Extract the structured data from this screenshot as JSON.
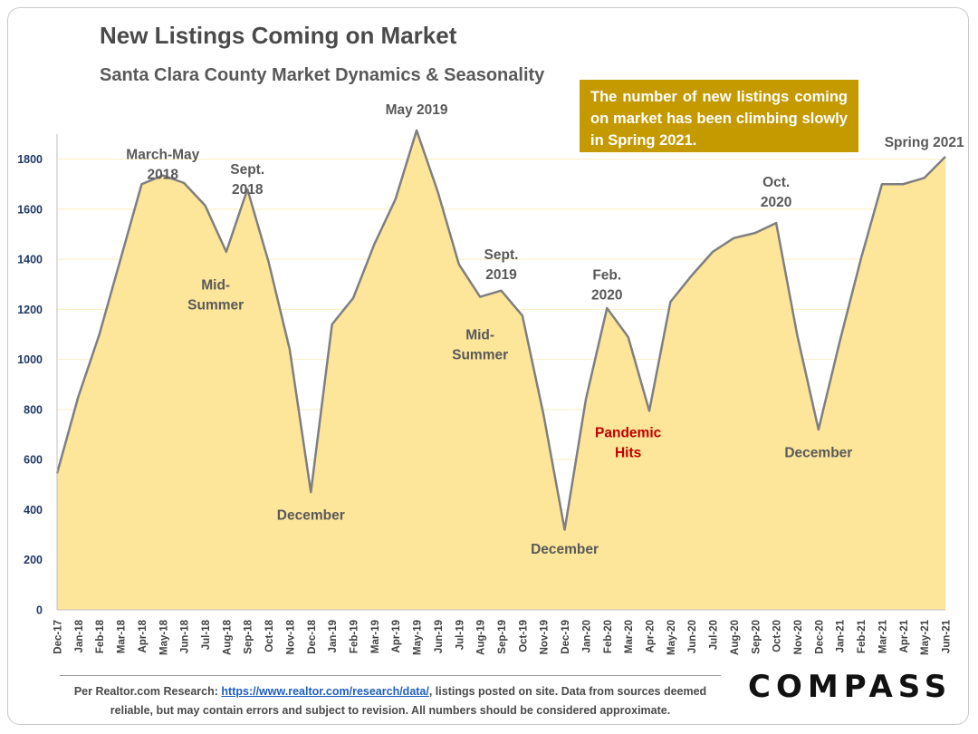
{
  "chart_data": {
    "type": "area",
    "title": "New Listings Coming on Market",
    "subtitle": "Santa Clara County Market Dynamics & Seasonality",
    "ylim": [
      0,
      1900
    ],
    "yticks": [
      0,
      200,
      400,
      600,
      800,
      1000,
      1200,
      1400,
      1600,
      1800
    ],
    "categories": [
      "Dec-17",
      "Jan-18",
      "Feb-18",
      "Mar-18",
      "Apr-18",
      "May-18",
      "Jun-18",
      "Jul-18",
      "Aug-18",
      "Sep-18",
      "Oct-18",
      "Nov-18",
      "Dec-18",
      "Jan-19",
      "Feb-19",
      "Mar-19",
      "Apr-19",
      "May-19",
      "Jun-19",
      "Jul-19",
      "Aug-19",
      "Sep-19",
      "Oct-19",
      "Nov-19",
      "Dec-19",
      "Jan-20",
      "Feb-20",
      "Mar-20",
      "Apr-20",
      "May-20",
      "Jun-20",
      "Jul-20",
      "Aug-20",
      "Sep-20",
      "Oct-20",
      "Nov-20",
      "Dec-20",
      "Jan-21",
      "Feb-21",
      "Mar-21",
      "Apr-21",
      "May-21",
      "Jun-21"
    ],
    "values": [
      545,
      850,
      1100,
      1400,
      1700,
      1735,
      1705,
      1615,
      1430,
      1680,
      1390,
      1040,
      470,
      1140,
      1245,
      1460,
      1640,
      1915,
      1670,
      1380,
      1250,
      1275,
      1175,
      780,
      320,
      840,
      1205,
      1090,
      795,
      1230,
      1335,
      1430,
      1485,
      1505,
      1545,
      1095,
      720,
      1070,
      1400,
      1700,
      1700,
      1725,
      1810
    ],
    "fill_color": "#fde59a",
    "line_color": "#7f7f7f",
    "annotations": [
      {
        "lines": [
          "March-May",
          "2018"
        ],
        "index": 5,
        "value": 1800,
        "color": "#595959"
      },
      {
        "lines": [
          "Sept.",
          "2018"
        ],
        "index": 9,
        "value": 1740,
        "color": "#595959"
      },
      {
        "lines": [
          "Mid-",
          "Summer"
        ],
        "index": 7.5,
        "value": 1280,
        "color": "#595959"
      },
      {
        "lines": [
          "December"
        ],
        "index": 12,
        "value": 360,
        "color": "#595959"
      },
      {
        "lines": [
          "May 2019"
        ],
        "index": 17,
        "value": 1980,
        "color": "#595959"
      },
      {
        "lines": [
          "Sept.",
          "2019"
        ],
        "index": 21,
        "value": 1400,
        "color": "#595959"
      },
      {
        "lines": [
          "Mid-",
          "Summer"
        ],
        "index": 20,
        "value": 1080,
        "color": "#595959"
      },
      {
        "lines": [
          "December"
        ],
        "index": 24,
        "value": 225,
        "color": "#595959"
      },
      {
        "lines": [
          "Feb.",
          "2020"
        ],
        "index": 26,
        "value": 1320,
        "color": "#595959"
      },
      {
        "lines": [
          "Pandemic",
          "Hits"
        ],
        "index": 27,
        "value": 690,
        "color": "#c00000"
      },
      {
        "lines": [
          "December"
        ],
        "index": 36,
        "value": 610,
        "color": "#595959"
      },
      {
        "lines": [
          "Oct.",
          "2020"
        ],
        "index": 34,
        "value": 1690,
        "color": "#595959"
      },
      {
        "lines": [
          "Spring 2021"
        ],
        "index": 41,
        "value": 1850,
        "color": "#595959"
      }
    ]
  },
  "callout": {
    "text": "The number of new listings coming on market has been climbing slowly in Spring 2021."
  },
  "footer": {
    "prefix": "Per Realtor.com Research: ",
    "link": "https://www.realtor.com/research/data/",
    "suffix": ", listings posted on site. Data from sources deemed reliable, but may contain errors and subject to revision. All numbers should be considered approximate."
  },
  "brand": {
    "name": "COMPASS"
  }
}
